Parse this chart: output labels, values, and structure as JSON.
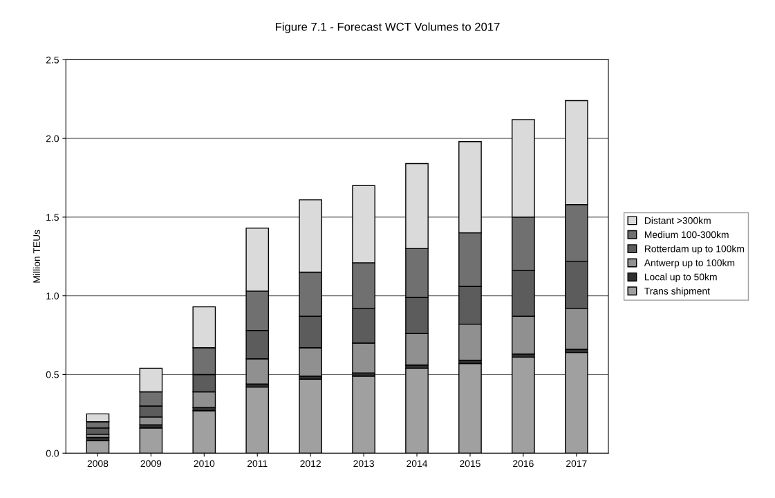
{
  "chart_data": {
    "type": "bar",
    "stacked": true,
    "title": "Figure 7.1 - Forecast WCT Volumes to 2017",
    "ylabel": "Million TEUs",
    "categories": [
      "2008",
      "2009",
      "2010",
      "2011",
      "2012",
      "2013",
      "2014",
      "2015",
      "2016",
      "2017"
    ],
    "series": [
      {
        "name": "Trans shipment",
        "color": "#a0a0a0",
        "values": [
          0.08,
          0.16,
          0.27,
          0.42,
          0.47,
          0.49,
          0.54,
          0.57,
          0.61,
          0.64
        ]
      },
      {
        "name": "Local up to 50km",
        "color": "#303030",
        "values": [
          0.02,
          0.02,
          0.02,
          0.02,
          0.02,
          0.02,
          0.02,
          0.02,
          0.02,
          0.02
        ]
      },
      {
        "name": "Antwerp up to 100km",
        "color": "#909090",
        "values": [
          0.02,
          0.05,
          0.1,
          0.16,
          0.18,
          0.19,
          0.2,
          0.23,
          0.24,
          0.26
        ]
      },
      {
        "name": "Rotterdam up to 100km",
        "color": "#5c5c5c",
        "values": [
          0.04,
          0.07,
          0.11,
          0.18,
          0.2,
          0.22,
          0.23,
          0.24,
          0.29,
          0.3
        ]
      },
      {
        "name": "Medium 100-300km",
        "color": "#707070",
        "values": [
          0.04,
          0.09,
          0.17,
          0.25,
          0.28,
          0.29,
          0.31,
          0.34,
          0.34,
          0.36
        ]
      },
      {
        "name": "Distant >300km",
        "color": "#dadada",
        "values": [
          0.05,
          0.15,
          0.26,
          0.4,
          0.46,
          0.49,
          0.54,
          0.58,
          0.62,
          0.66
        ]
      }
    ],
    "ylim": [
      0,
      2.5
    ],
    "yticks": [
      {
        "value": 0,
        "label": "0.0"
      },
      {
        "value": 0.5,
        "label": "0.5"
      },
      {
        "value": 1,
        "label": "1.0"
      },
      {
        "value": 1.5,
        "label": "1.5"
      },
      {
        "value": 2,
        "label": "2.0"
      },
      {
        "value": 2.5,
        "label": "2.5"
      }
    ],
    "grid": "y",
    "legend": "right"
  }
}
